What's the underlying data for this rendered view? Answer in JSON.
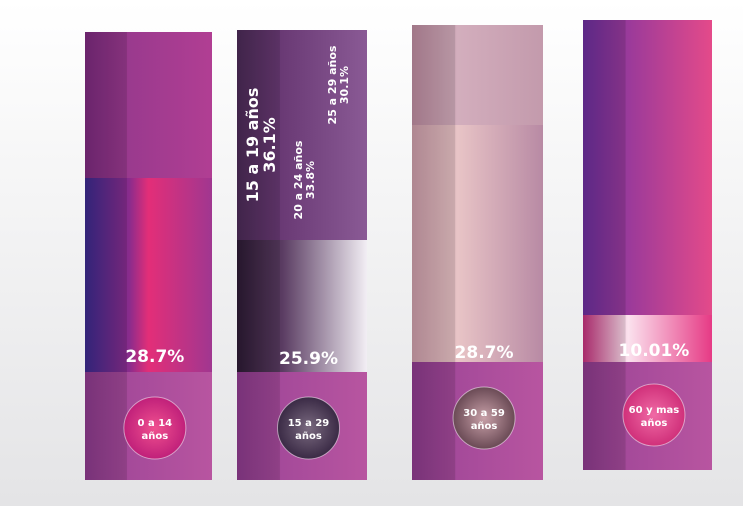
{
  "columns": [
    {
      "value": "28.7%",
      "label": "0 a 14 años"
    },
    {
      "value": "25.9%",
      "label": "15 a 29 años"
    },
    {
      "value": "28.7%",
      "label": "30 a 59 años"
    },
    {
      "value": "10.01%",
      "label": "60 y mas años"
    }
  ],
  "breakdown": [
    {
      "label": "15 a 19 años",
      "value": "36.1%"
    },
    {
      "label": "20 a 24 años",
      "value": "33.8%"
    },
    {
      "label": "25 a 29 años",
      "value": "30.1%"
    }
  ]
}
